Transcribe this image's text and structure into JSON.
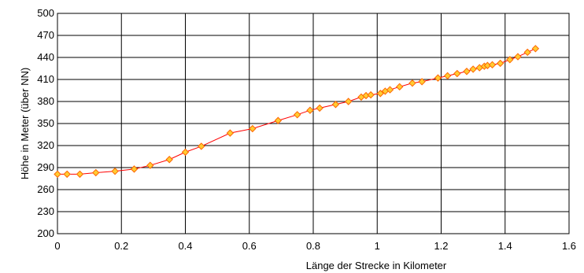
{
  "chart_data": {
    "type": "line",
    "xlabel": "Länge der Strecke in Kilometer",
    "ylabel": "Höhe in Meter (über NN)",
    "xlim": [
      0,
      1.6
    ],
    "ylim": [
      200,
      500
    ],
    "x_ticks": [
      "0",
      "0.2",
      "0.4",
      "0.6",
      "0.8",
      "1",
      "1.2",
      "1.4",
      "1.6"
    ],
    "y_ticks": [
      "500",
      "470",
      "440",
      "410",
      "380",
      "350",
      "320",
      "290",
      "260",
      "230",
      "200"
    ],
    "grid": true,
    "line_color": "#ff0000",
    "marker_fill": "#ffcc33",
    "marker_stroke": "#ff6600",
    "series": [
      {
        "x": [
          0,
          0.03,
          0.07,
          0.12,
          0.18,
          0.24,
          0.29,
          0.35,
          0.4,
          0.45,
          0.54,
          0.61,
          0.69,
          0.75,
          0.79,
          0.82,
          0.87,
          0.91,
          0.95,
          0.965,
          0.98,
          1.01,
          1.025,
          1.04,
          1.07,
          1.11,
          1.14,
          1.19,
          1.22,
          1.25,
          1.28,
          1.3,
          1.32,
          1.335,
          1.345,
          1.36,
          1.385,
          1.415,
          1.44,
          1.47,
          1.495
        ],
        "y": [
          281,
          281,
          281,
          283,
          285,
          288,
          293,
          301,
          311,
          319,
          337,
          343,
          354,
          362,
          368,
          371,
          376,
          380,
          386,
          388,
          389,
          391,
          394,
          396,
          400,
          405,
          407,
          412,
          415,
          418,
          421,
          424,
          426,
          428,
          429,
          430,
          432,
          437,
          441,
          447,
          452
        ]
      }
    ]
  }
}
